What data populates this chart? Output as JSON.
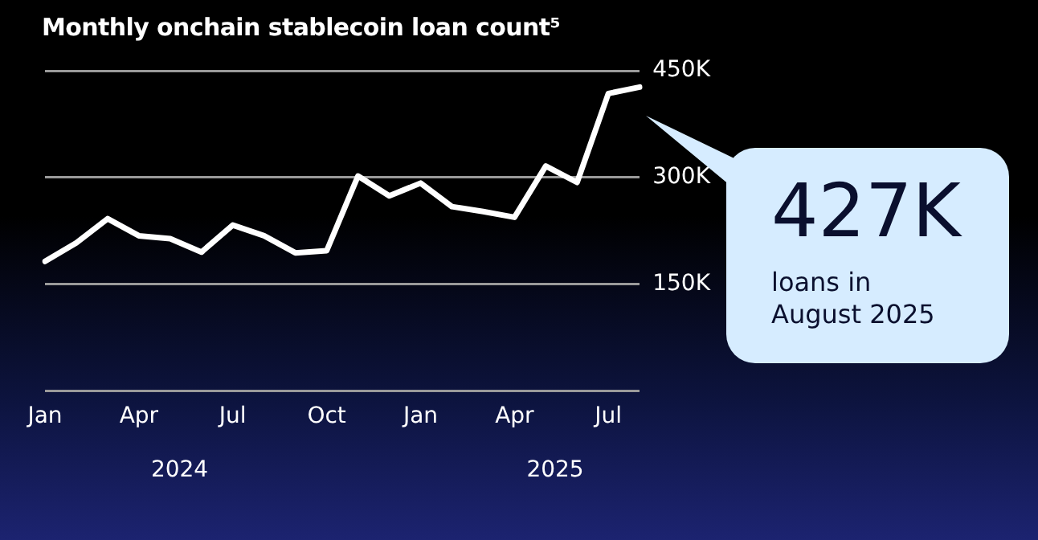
{
  "chart_data": {
    "type": "line",
    "title": "Monthly onchain stablecoin loan count⁵",
    "categories": [
      "Jan",
      null,
      null,
      "Apr",
      null,
      null,
      "Jul",
      null,
      null,
      "Oct",
      null,
      null,
      "Jan",
      null,
      null,
      "Apr",
      null,
      null,
      "Jul",
      null
    ],
    "series": [
      {
        "color": "#ffffff",
        "values": [
          182,
          208,
          242,
          218,
          214,
          195,
          233,
          218,
          194,
          197,
          302,
          274,
          292,
          259,
          252,
          244,
          316,
          293,
          418,
          427
        ]
      }
    ],
    "ylim": [
      0,
      450
    ],
    "yticks": [
      {
        "value": 0,
        "label": null
      },
      {
        "value": 150,
        "label": "150K"
      },
      {
        "value": 300,
        "label": "300K"
      },
      {
        "value": 450,
        "label": "450K"
      }
    ],
    "grid": "y",
    "legend": false,
    "marker": "none",
    "line_style": "solid",
    "annotations": [
      "2024",
      "2025",
      "427K",
      "loans in\nAugust 2025"
    ]
  }
}
